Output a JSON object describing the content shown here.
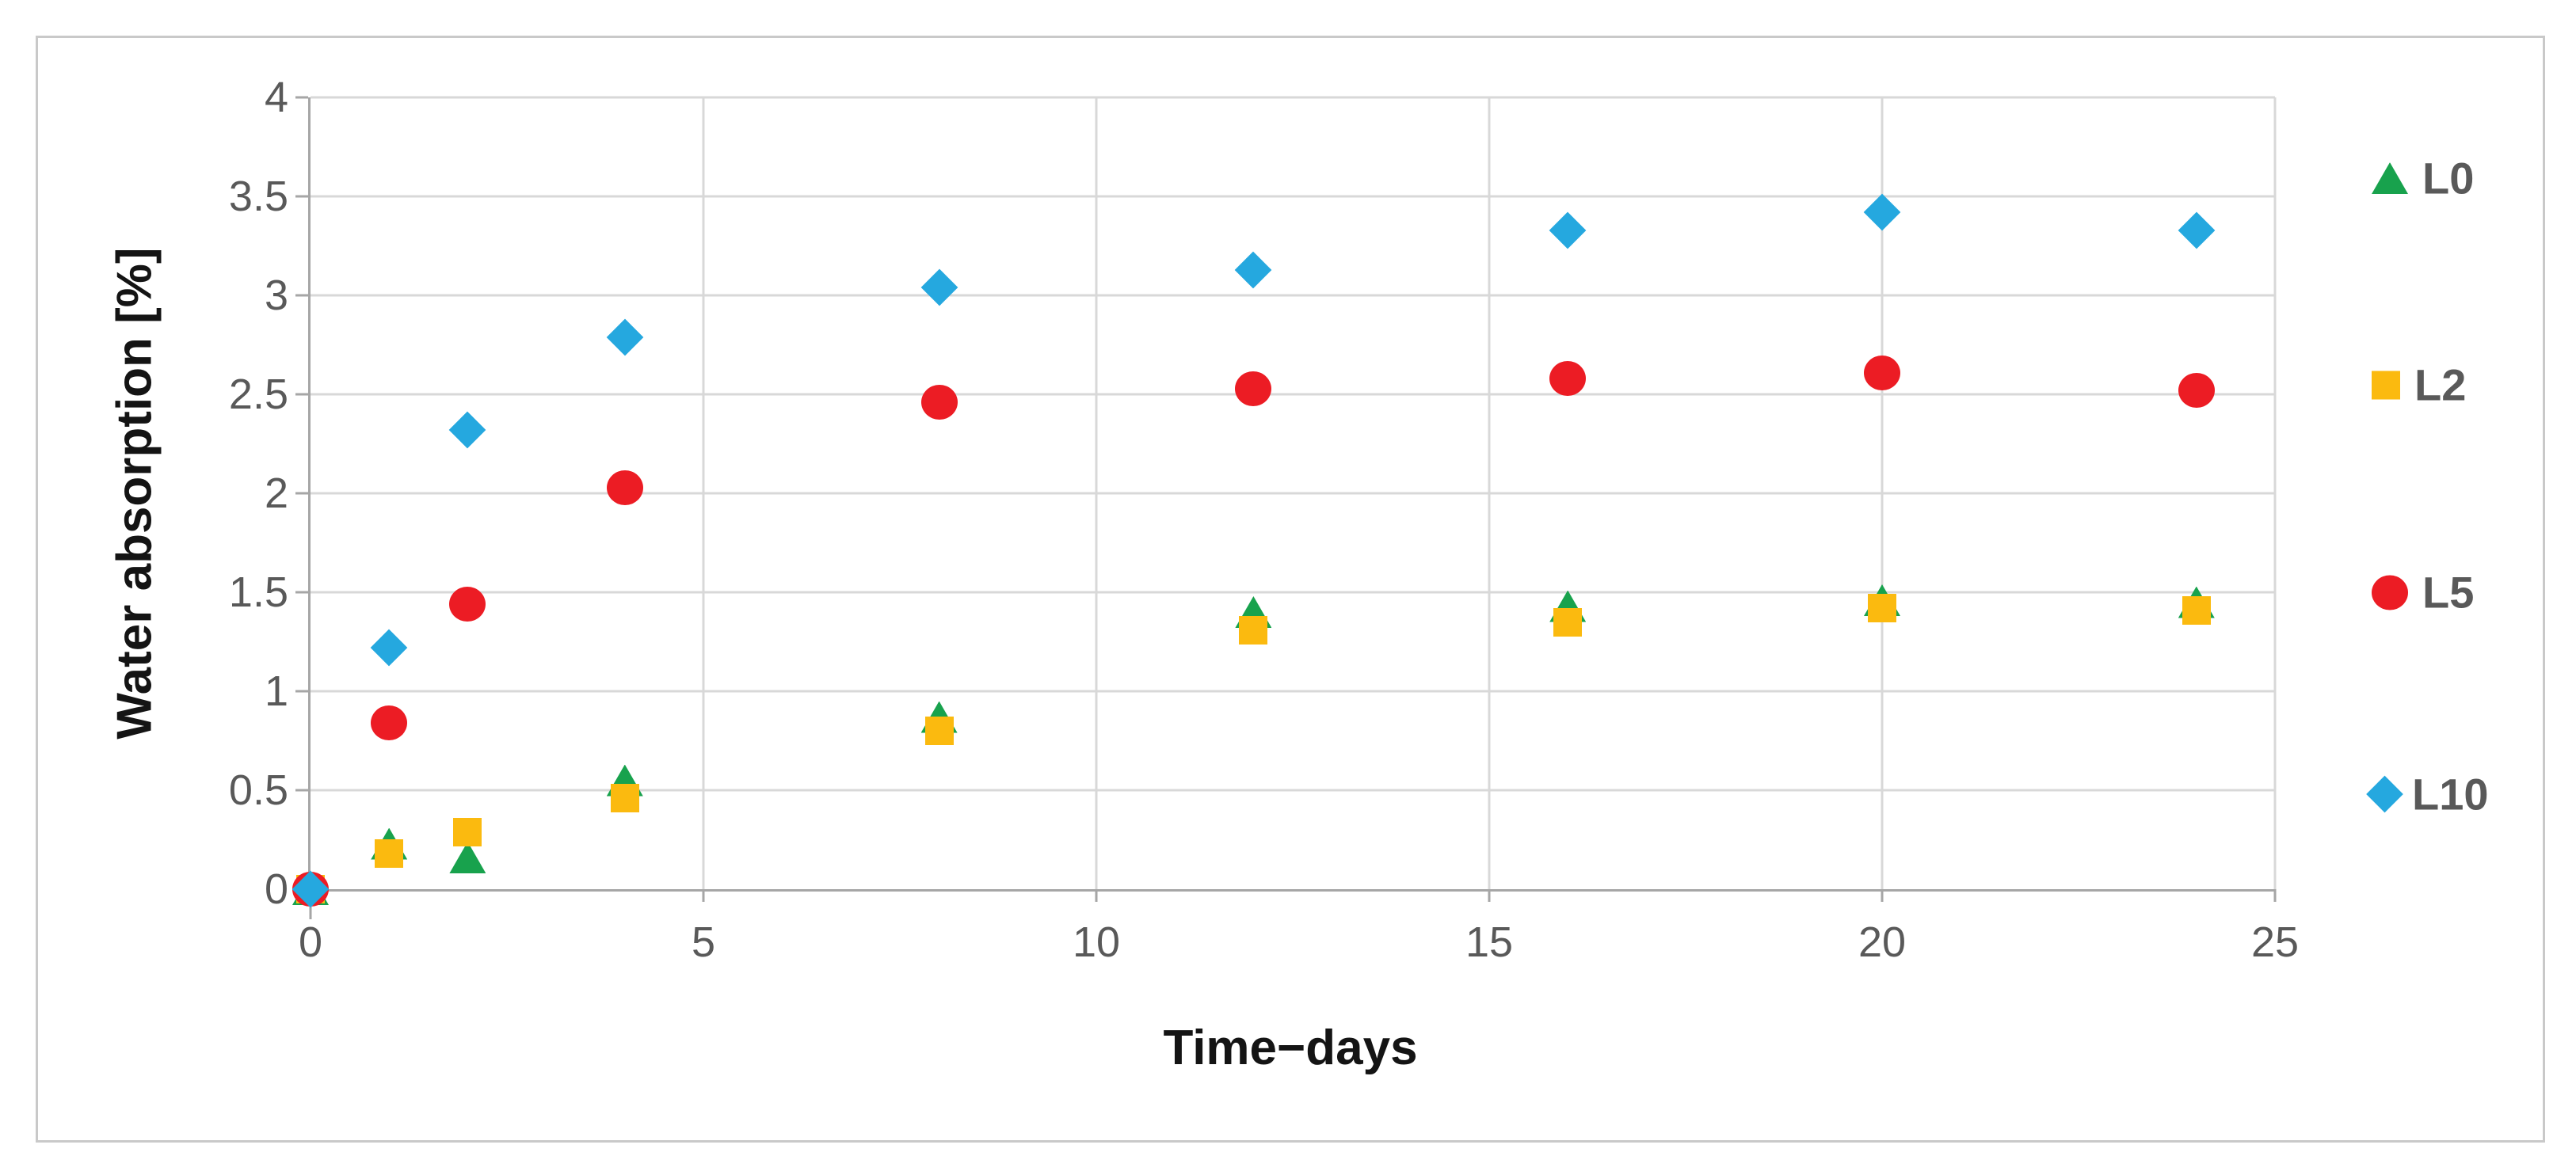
{
  "chart_data": {
    "type": "scatter",
    "title": "",
    "xlabel": "Time−days",
    "ylabel": "Water absorption [%]",
    "xlim": [
      0,
      25
    ],
    "ylim": [
      0,
      4
    ],
    "grid": true,
    "legend_position": "right",
    "x_ticks": [
      0,
      5,
      10,
      15,
      20,
      25
    ],
    "x_tick_labels": [
      "0",
      "5",
      "10",
      "15",
      "20",
      "25"
    ],
    "y_ticks": [
      0,
      0.5,
      1,
      1.5,
      2,
      2.5,
      3,
      3.5,
      4
    ],
    "y_tick_labels": [
      "0",
      "0.5",
      "1",
      "1.5",
      "2",
      "2.5",
      "3",
      "3.5",
      "4"
    ],
    "x": [
      0,
      1,
      2,
      4,
      8,
      12,
      16,
      20,
      24
    ],
    "series": [
      {
        "name": "L0",
        "marker": "triangle",
        "color": "#18a24d",
        "values": [
          0,
          0.23,
          0.16,
          0.55,
          0.87,
          1.4,
          1.43,
          1.46,
          1.45
        ]
      },
      {
        "name": "L2",
        "marker": "square",
        "color": "#fbba0f",
        "values": [
          0,
          0.18,
          0.29,
          0.46,
          0.8,
          1.31,
          1.35,
          1.42,
          1.41
        ]
      },
      {
        "name": "L5",
        "marker": "circle",
        "color": "#ec1c24",
        "values": [
          0,
          0.84,
          1.44,
          2.03,
          2.46,
          2.53,
          2.58,
          2.61,
          2.52
        ]
      },
      {
        "name": "L10",
        "marker": "diamond",
        "color": "#25a8df",
        "values": [
          0,
          1.22,
          2.32,
          2.79,
          3.04,
          3.13,
          3.33,
          3.42,
          3.33
        ]
      }
    ]
  },
  "colors": {
    "background": "#ffffff",
    "figure_border": "#c9c9c9",
    "gridline": "#d8d8d8",
    "axis_line": "#a6a6a6",
    "tick_text": "#595959",
    "title_text": "#141414",
    "legend_text": "#595959"
  }
}
